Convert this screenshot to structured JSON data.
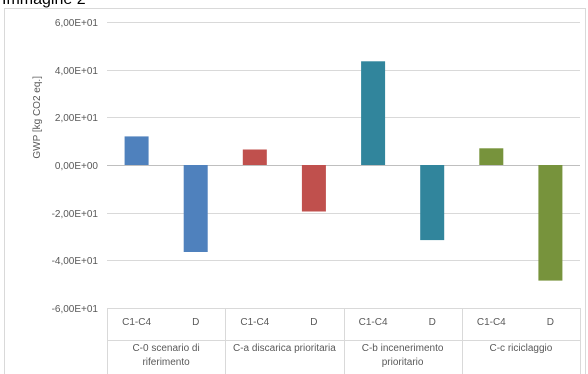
{
  "header_text": "Immagine 2",
  "chart_data": {
    "type": "bar",
    "ylabel": "GWP [kg CO2 eq.]",
    "ylim": [
      -60,
      60
    ],
    "ytick_values": [
      60,
      40,
      20,
      0,
      -20,
      -40,
      -60
    ],
    "ytick_labels": [
      "6,00E+01",
      "4,00E+01",
      "2,00E+01",
      "0,00E+00",
      "-2,00E+01",
      "-4,00E+01",
      "-6,00E+01"
    ],
    "grid": true,
    "groups": [
      {
        "label_lines": [
          "C-0 scenario di",
          "riferimento"
        ],
        "color": "#4f81bd",
        "bars": [
          {
            "category": "C1-C4",
            "value": 12
          },
          {
            "category": "D",
            "value": -36.5
          }
        ]
      },
      {
        "label_lines": [
          "C-a discarica prioritaria"
        ],
        "color": "#c0504d",
        "bars": [
          {
            "category": "C1-C4",
            "value": 6.5
          },
          {
            "category": "D",
            "value": -19.5
          }
        ]
      },
      {
        "label_lines": [
          "C-b incenerimento",
          "prioritario"
        ],
        "color": "#31859c",
        "bars": [
          {
            "category": "C1-C4",
            "value": 43.5
          },
          {
            "category": "D",
            "value": -31.5
          }
        ]
      },
      {
        "label_lines": [
          "C-c riciclaggio"
        ],
        "color": "#77933c",
        "bars": [
          {
            "category": "C1-C4",
            "value": 7
          },
          {
            "category": "D",
            "value": -48.5
          }
        ]
      }
    ]
  }
}
